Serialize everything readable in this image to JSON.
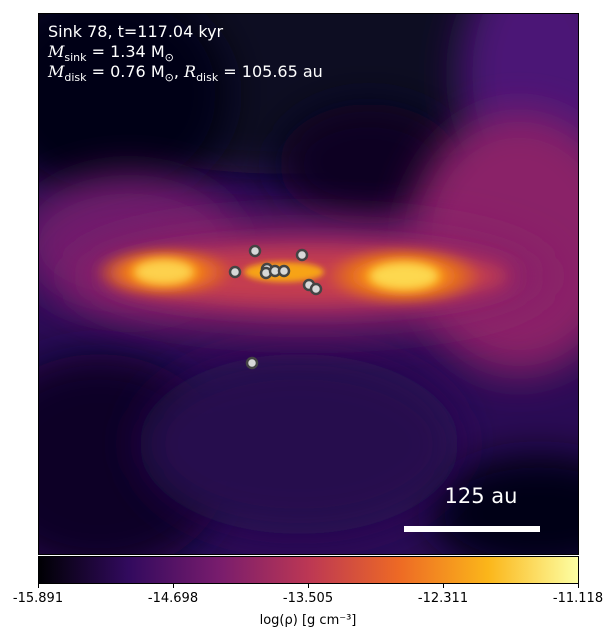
{
  "overlay": {
    "title": "Sink 78, t=117.04 kyr",
    "sink_mass_label": "M",
    "sink_mass_sub": "sink",
    "sink_mass_value": " = 1.34 M",
    "sink_mass_unit_sub": "⊙",
    "disk_mass_label": "M",
    "disk_mass_sub": "disk",
    "disk_mass_value": " = 0.76 M",
    "disk_mass_unit_sub": "⊙",
    "disk_radius_sep": ", ",
    "disk_radius_label": "R",
    "disk_radius_sub": "disk",
    "disk_radius_value": " = 105.65 au"
  },
  "scalebar": {
    "label": "125 au"
  },
  "colorbar": {
    "ticks": [
      "-15.891",
      "-14.698",
      "-13.505",
      "-12.311",
      "-11.118"
    ],
    "label": "log(ρ) [g cm⁻³]"
  },
  "colors": {
    "cmap": [
      "#000004",
      "#320a5e",
      "#781c6d",
      "#bc3754",
      "#ed6925",
      "#fbb61a",
      "#fcffa4"
    ]
  }
}
